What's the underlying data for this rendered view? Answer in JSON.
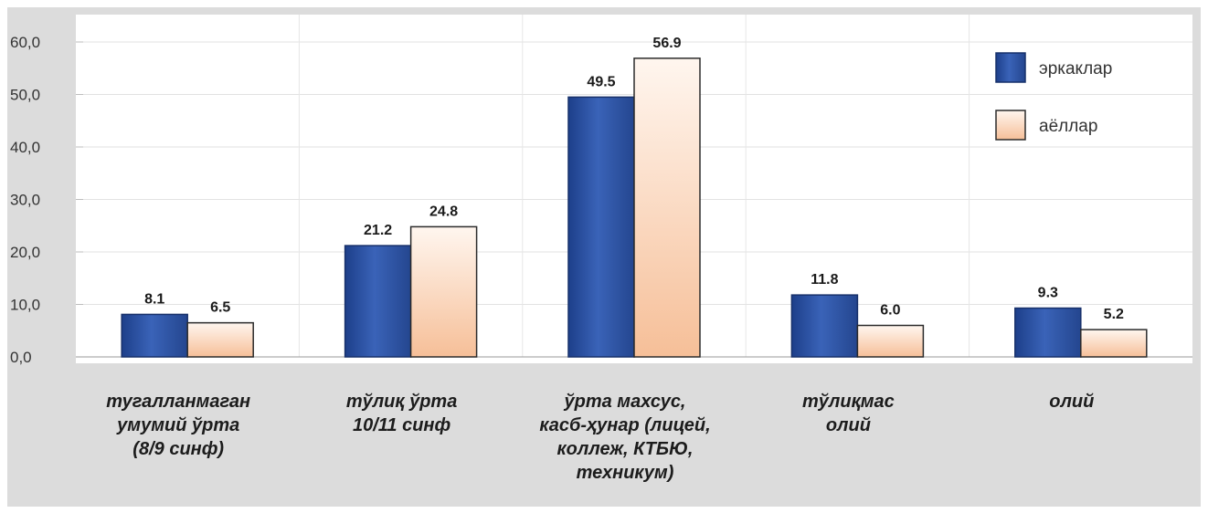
{
  "chart_data": {
    "type": "bar",
    "categories": [
      [
        "тугалланмаган",
        "умумий ўрта",
        "(8/9 синф)"
      ],
      [
        "тўлиқ ўрта",
        "10/11 синф"
      ],
      [
        "ўрта махсус,",
        "касб-ҳунар (лицей,",
        "коллеж, КТБЮ,",
        "техникум)"
      ],
      [
        "тўлиқмас",
        "олий"
      ],
      [
        "олий"
      ]
    ],
    "series": [
      {
        "name": "эркаклар",
        "values": [
          8.1,
          21.2,
          49.5,
          11.8,
          9.3
        ],
        "labels": [
          "8.1",
          "21.2",
          "49.5",
          "11.8",
          "9.3"
        ]
      },
      {
        "name": "аёллар",
        "values": [
          6.5,
          24.8,
          56.9,
          6.0,
          5.2
        ],
        "labels": [
          "6.5",
          "24.8",
          "56.9",
          "6.0",
          "5.2"
        ]
      }
    ],
    "yticks": [
      "0,0",
      "10,0",
      "20,0",
      "30,0",
      "40,0",
      "50,0",
      "60,0"
    ],
    "ylim": [
      0,
      60
    ],
    "grid": true,
    "legend_position": "top-right",
    "colors": {
      "series1": "#2c4f9e",
      "series2": "#f6c3a0",
      "plot_bg": "#ffffff",
      "panel_bg": "#dcdcdc"
    }
  }
}
